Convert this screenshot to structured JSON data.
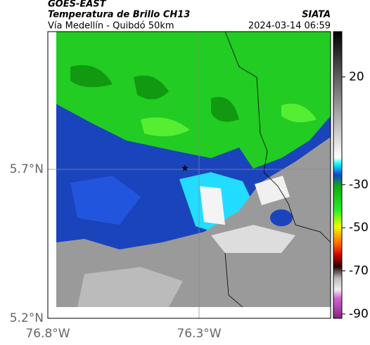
{
  "header": {
    "title": "GOES-EAST",
    "subtitle": "Temperatura de Brillo CH13",
    "route": "Vía Medellín - Quibdó 50km",
    "source": "SIATA",
    "datetime": "2024-03-14 06:59"
  },
  "map": {
    "lat_ticks": [
      "5.7°N",
      "5.2°N"
    ],
    "lon_ticks": [
      "76.8°W",
      "76.3°W"
    ]
  },
  "colorbar": {
    "clim": [
      41,
      -92
    ],
    "ticks": [
      20,
      -30,
      -50,
      -70,
      -90
    ]
  }
}
